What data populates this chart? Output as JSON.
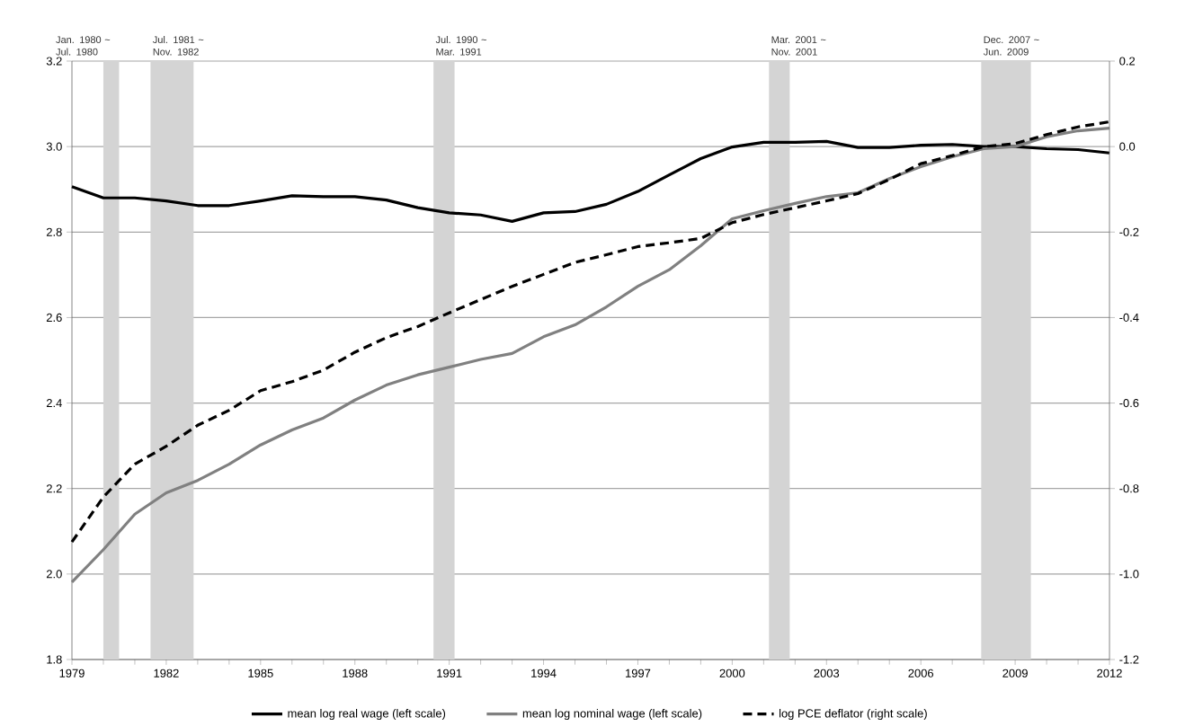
{
  "chart_data": {
    "type": "line",
    "x": [
      1979,
      1980,
      1981,
      1982,
      1983,
      1984,
      1985,
      1986,
      1987,
      1988,
      1989,
      1990,
      1991,
      1992,
      1993,
      1994,
      1995,
      1996,
      1997,
      1998,
      1999,
      2000,
      2001,
      2002,
      2003,
      2004,
      2005,
      2006,
      2007,
      2008,
      2009,
      2010,
      2011,
      2012
    ],
    "xlim": [
      1979,
      2012
    ],
    "xticks": [
      1979,
      1982,
      1985,
      1988,
      1991,
      1994,
      1997,
      2000,
      2003,
      2006,
      2009,
      2012
    ],
    "ylim": [
      1.8,
      3.2
    ],
    "yticks": [
      {
        "value": 1.8,
        "label": "1.8"
      },
      {
        "value": 2.0,
        "label": "2.0"
      },
      {
        "value": 2.2,
        "label": "2.2"
      },
      {
        "value": 2.4,
        "label": "2.4"
      },
      {
        "value": 2.6,
        "label": "2.6"
      },
      {
        "value": 2.8,
        "label": "2.8"
      },
      {
        "value": 3.0,
        "label": "3.0"
      },
      {
        "value": 3.2,
        "label": "3.2"
      }
    ],
    "y2lim": [
      -1.2,
      0.2
    ],
    "y2ticks": [
      {
        "value": -1.2,
        "label": "-1.2"
      },
      {
        "value": -1.0,
        "label": "-1.0"
      },
      {
        "value": -0.8,
        "label": "-0.8"
      },
      {
        "value": -0.6,
        "label": "-0.6"
      },
      {
        "value": -0.4,
        "label": "-0.4"
      },
      {
        "value": -0.2,
        "label": "-0.2"
      },
      {
        "value": 0.0,
        "label": "0.0"
      },
      {
        "value": 0.2,
        "label": "0.2"
      }
    ],
    "grid": "y",
    "legend": "bottom",
    "marker": "none",
    "series": [
      {
        "name": "mean log real wage (left scale)",
        "color": "#000000",
        "line_style": "solid",
        "values": [
          2.906,
          2.88,
          2.88,
          2.873,
          2.862,
          2.862,
          2.873,
          2.885,
          2.883,
          2.883,
          2.875,
          2.857,
          2.845,
          2.84,
          2.825,
          2.845,
          2.848,
          2.865,
          2.895,
          2.934,
          2.972,
          2.999,
          3.01,
          3.01,
          3.012,
          2.998,
          2.998,
          3.003,
          3.005,
          3.0,
          3.0,
          2.995,
          2.993,
          2.985
        ]
      },
      {
        "name": "mean log nominal wage (left scale)",
        "color": "#808080",
        "line_style": "solid",
        "values": [
          1.981,
          2.057,
          2.14,
          2.19,
          2.219,
          2.257,
          2.302,
          2.337,
          2.365,
          2.407,
          2.442,
          2.466,
          2.484,
          2.502,
          2.516,
          2.555,
          2.583,
          2.625,
          2.673,
          2.712,
          2.768,
          2.831,
          2.85,
          2.867,
          2.883,
          2.892,
          2.925,
          2.953,
          2.976,
          2.995,
          3.0,
          3.023,
          3.037,
          3.043
        ]
      },
      {
        "name": "log PCE deflator (right scale)",
        "color": "#000000",
        "line_style": "dashed",
        "axis": "y2",
        "values": [
          -0.925,
          -0.82,
          -0.743,
          -0.701,
          -0.652,
          -0.617,
          -0.571,
          -0.55,
          -0.523,
          -0.481,
          -0.447,
          -0.421,
          -0.389,
          -0.358,
          -0.327,
          -0.299,
          -0.271,
          -0.253,
          -0.234,
          -0.225,
          -0.215,
          -0.178,
          -0.159,
          -0.143,
          -0.127,
          -0.11,
          -0.077,
          -0.04,
          -0.021,
          0.0,
          0.007,
          0.028,
          0.046,
          0.058
        ]
      }
    ],
    "bands": [
      {
        "axis": "x",
        "from": 1980.0,
        "to": 1980.5,
        "label": "Jan. 1980 ~ Jul. 1980",
        "color": "#d4d4d4"
      },
      {
        "axis": "x",
        "from": 1981.5,
        "to": 1982.87,
        "label": "Jul. 1981 ~ Nov. 1982",
        "color": "#d4d4d4"
      },
      {
        "axis": "x",
        "from": 1990.5,
        "to": 1991.17,
        "label": "Jul. 1990 ~ Mar. 1991",
        "color": "#d4d4d4"
      },
      {
        "axis": "x",
        "from": 2001.17,
        "to": 2001.83,
        "label": "Mar. 2001 ~ Nov. 2001",
        "color": "#d4d4d4"
      },
      {
        "axis": "x",
        "from": 2007.92,
        "to": 2009.5,
        "label": "Dec. 2007 ~ Jun. 2009",
        "color": "#d4d4d4"
      }
    ]
  }
}
